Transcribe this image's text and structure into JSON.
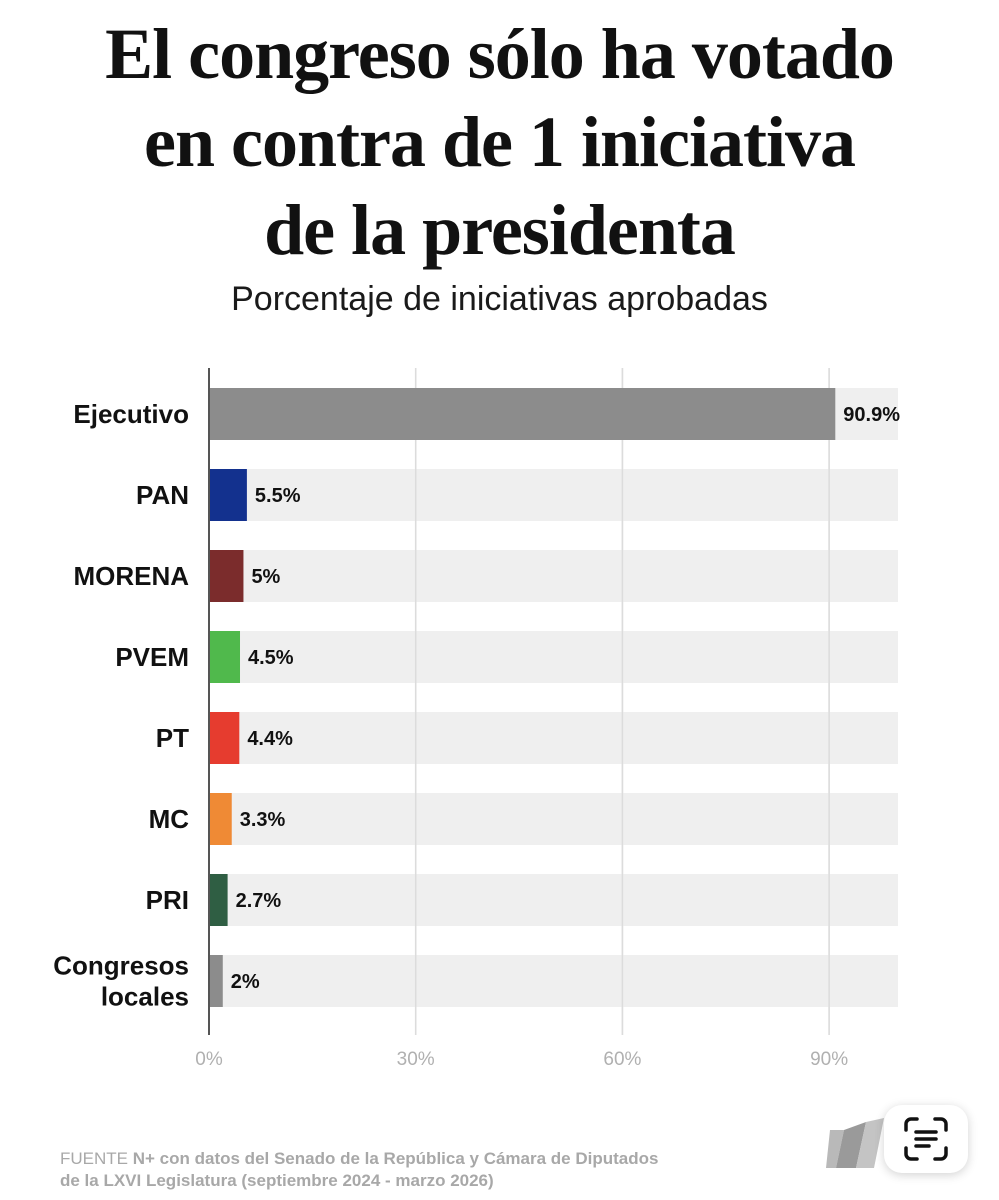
{
  "header": {
    "title_lines": [
      "El congreso sólo ha votado",
      "en contra de 1 iniciativa",
      "de la presidenta"
    ],
    "subtitle": "Porcentaje de iniciativas aprobadas"
  },
  "chart_data": {
    "type": "bar",
    "orientation": "horizontal",
    "title": "El congreso sólo ha votado en contra de 1 iniciativa de la presidenta",
    "subtitle": "Porcentaje de iniciativas aprobadas",
    "categories": [
      [
        "Ejecutivo"
      ],
      [
        "PAN"
      ],
      [
        "MORENA"
      ],
      [
        "PVEM"
      ],
      [
        "PT"
      ],
      [
        "MC"
      ],
      [
        "PRI"
      ],
      [
        "Congresos",
        "locales"
      ]
    ],
    "values": [
      90.9,
      5.5,
      5,
      4.5,
      4.4,
      3.3,
      2.7,
      2
    ],
    "value_labels": [
      "90.9%",
      "5.5%",
      "5%",
      "4.5%",
      "4.4%",
      "3.3%",
      "2.7%",
      "2%"
    ],
    "colors": [
      "#8c8c8c",
      "#13318e",
      "#7b2c2c",
      "#50b94c",
      "#e63c2f",
      "#ef8a35",
      "#2f5e43",
      "#8c8c8c"
    ],
    "track_color": "#efefef",
    "xlim": [
      0,
      100
    ],
    "x_ticks": [
      0,
      30,
      60,
      90
    ],
    "x_tick_labels": [
      "0%",
      "30%",
      "60%",
      "90%"
    ],
    "grid": true
  },
  "footer": {
    "source_label": "FUENTE",
    "source_brand": "N+",
    "source_line1": " con datos del Senado de la República y Cámara de Diputados",
    "source_line2": "de la LXVI Legislatura (septiembre 2024 - marzo 2026)"
  },
  "icons": {
    "brand_logo": "nplus-logo-icon",
    "scan_button": "text-scan-icon"
  }
}
